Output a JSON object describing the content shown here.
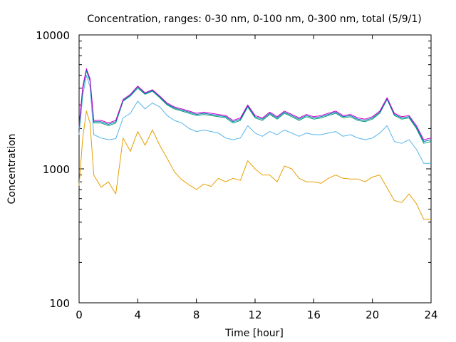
{
  "chart_data": {
    "type": "line",
    "title": "Concentration, ranges: 0-30 nm, 0-100 nm, 0-300 nm, total (5/9/1)",
    "xlabel": "Time [hour]",
    "ylabel": "Concentration",
    "xlim": [
      0,
      24
    ],
    "ylim": [
      100,
      10000
    ],
    "yscale": "log",
    "grid": false,
    "x_ticks": [
      0,
      4,
      8,
      12,
      16,
      20,
      24
    ],
    "x_tick_labels": [
      "0",
      "4",
      "8",
      "12",
      "16",
      "20",
      "24"
    ],
    "y_ticks": [
      100,
      1000,
      10000
    ],
    "y_tick_labels": [
      "100",
      "1000",
      "10000"
    ],
    "x": [
      0,
      0.25,
      0.5,
      0.75,
      1,
      1.5,
      2,
      2.5,
      3,
      3.5,
      4,
      4.5,
      5,
      5.5,
      6,
      6.5,
      7,
      7.5,
      8,
      8.5,
      9,
      9.5,
      10,
      10.5,
      11,
      11.5,
      12,
      12.5,
      13,
      13.5,
      14,
      14.5,
      15,
      15.5,
      16,
      16.5,
      17,
      17.5,
      18,
      18.5,
      19,
      19.5,
      20,
      20.5,
      21,
      21.5,
      22,
      22.5,
      23,
      23.5,
      24
    ],
    "series": [
      {
        "color": "#e69f00",
        "values": [
          750,
          1700,
          2700,
          2200,
          900,
          730,
          800,
          650,
          1700,
          1350,
          1900,
          1500,
          1950,
          1500,
          1200,
          950,
          830,
          760,
          700,
          770,
          740,
          850,
          800,
          850,
          820,
          1150,
          1000,
          900,
          900,
          800,
          1050,
          1000,
          850,
          800,
          800,
          780,
          850,
          900,
          850,
          840,
          840,
          800,
          870,
          900,
          720,
          580,
          560,
          650,
          550,
          420,
          420
        ]
      },
      {
        "color": "#56b4e9",
        "values": [
          1800,
          3500,
          5000,
          4100,
          1800,
          1700,
          1650,
          1680,
          2400,
          2600,
          3200,
          2800,
          3100,
          2900,
          2500,
          2300,
          2200,
          2000,
          1900,
          1950,
          1900,
          1850,
          1700,
          1650,
          1700,
          2100,
          1850,
          1750,
          1900,
          1800,
          1950,
          1850,
          1750,
          1850,
          1800,
          1800,
          1850,
          1900,
          1750,
          1800,
          1700,
          1650,
          1700,
          1850,
          2100,
          1600,
          1550,
          1650,
          1400,
          1100,
          1100
        ]
      },
      {
        "color": "#009e73",
        "values": [
          2000,
          3900,
          5400,
          4500,
          2200,
          2200,
          2100,
          2200,
          3200,
          3500,
          4000,
          3600,
          3800,
          3400,
          3000,
          2800,
          2700,
          2600,
          2500,
          2550,
          2500,
          2450,
          2400,
          2200,
          2300,
          2900,
          2400,
          2300,
          2550,
          2350,
          2600,
          2450,
          2300,
          2450,
          2350,
          2400,
          2500,
          2600,
          2400,
          2450,
          2300,
          2250,
          2350,
          2600,
          3300,
          2500,
          2350,
          2400,
          2000,
          1550,
          1600
        ]
      },
      {
        "color": "#0072b2",
        "values": [
          2050,
          4000,
          5500,
          4600,
          2250,
          2250,
          2150,
          2250,
          3250,
          3550,
          4100,
          3650,
          3850,
          3450,
          3050,
          2850,
          2750,
          2650,
          2550,
          2600,
          2550,
          2500,
          2450,
          2250,
          2350,
          2950,
          2450,
          2350,
          2600,
          2400,
          2650,
          2500,
          2350,
          2500,
          2400,
          2450,
          2550,
          2650,
          2450,
          2500,
          2350,
          2300,
          2400,
          2650,
          3350,
          2550,
          2400,
          2450,
          2050,
          1600,
          1650
        ]
      },
      {
        "color": "#cc00cc",
        "values": [
          2100,
          4100,
          5600,
          4700,
          2300,
          2300,
          2200,
          2300,
          3300,
          3600,
          4150,
          3700,
          3900,
          3500,
          3100,
          2900,
          2800,
          2700,
          2600,
          2650,
          2600,
          2550,
          2500,
          2300,
          2400,
          3000,
          2500,
          2400,
          2650,
          2450,
          2700,
          2550,
          2400,
          2550,
          2450,
          2500,
          2600,
          2700,
          2500,
          2550,
          2400,
          2350,
          2450,
          2700,
          3400,
          2600,
          2450,
          2500,
          2100,
          1650,
          1700
        ]
      }
    ]
  }
}
